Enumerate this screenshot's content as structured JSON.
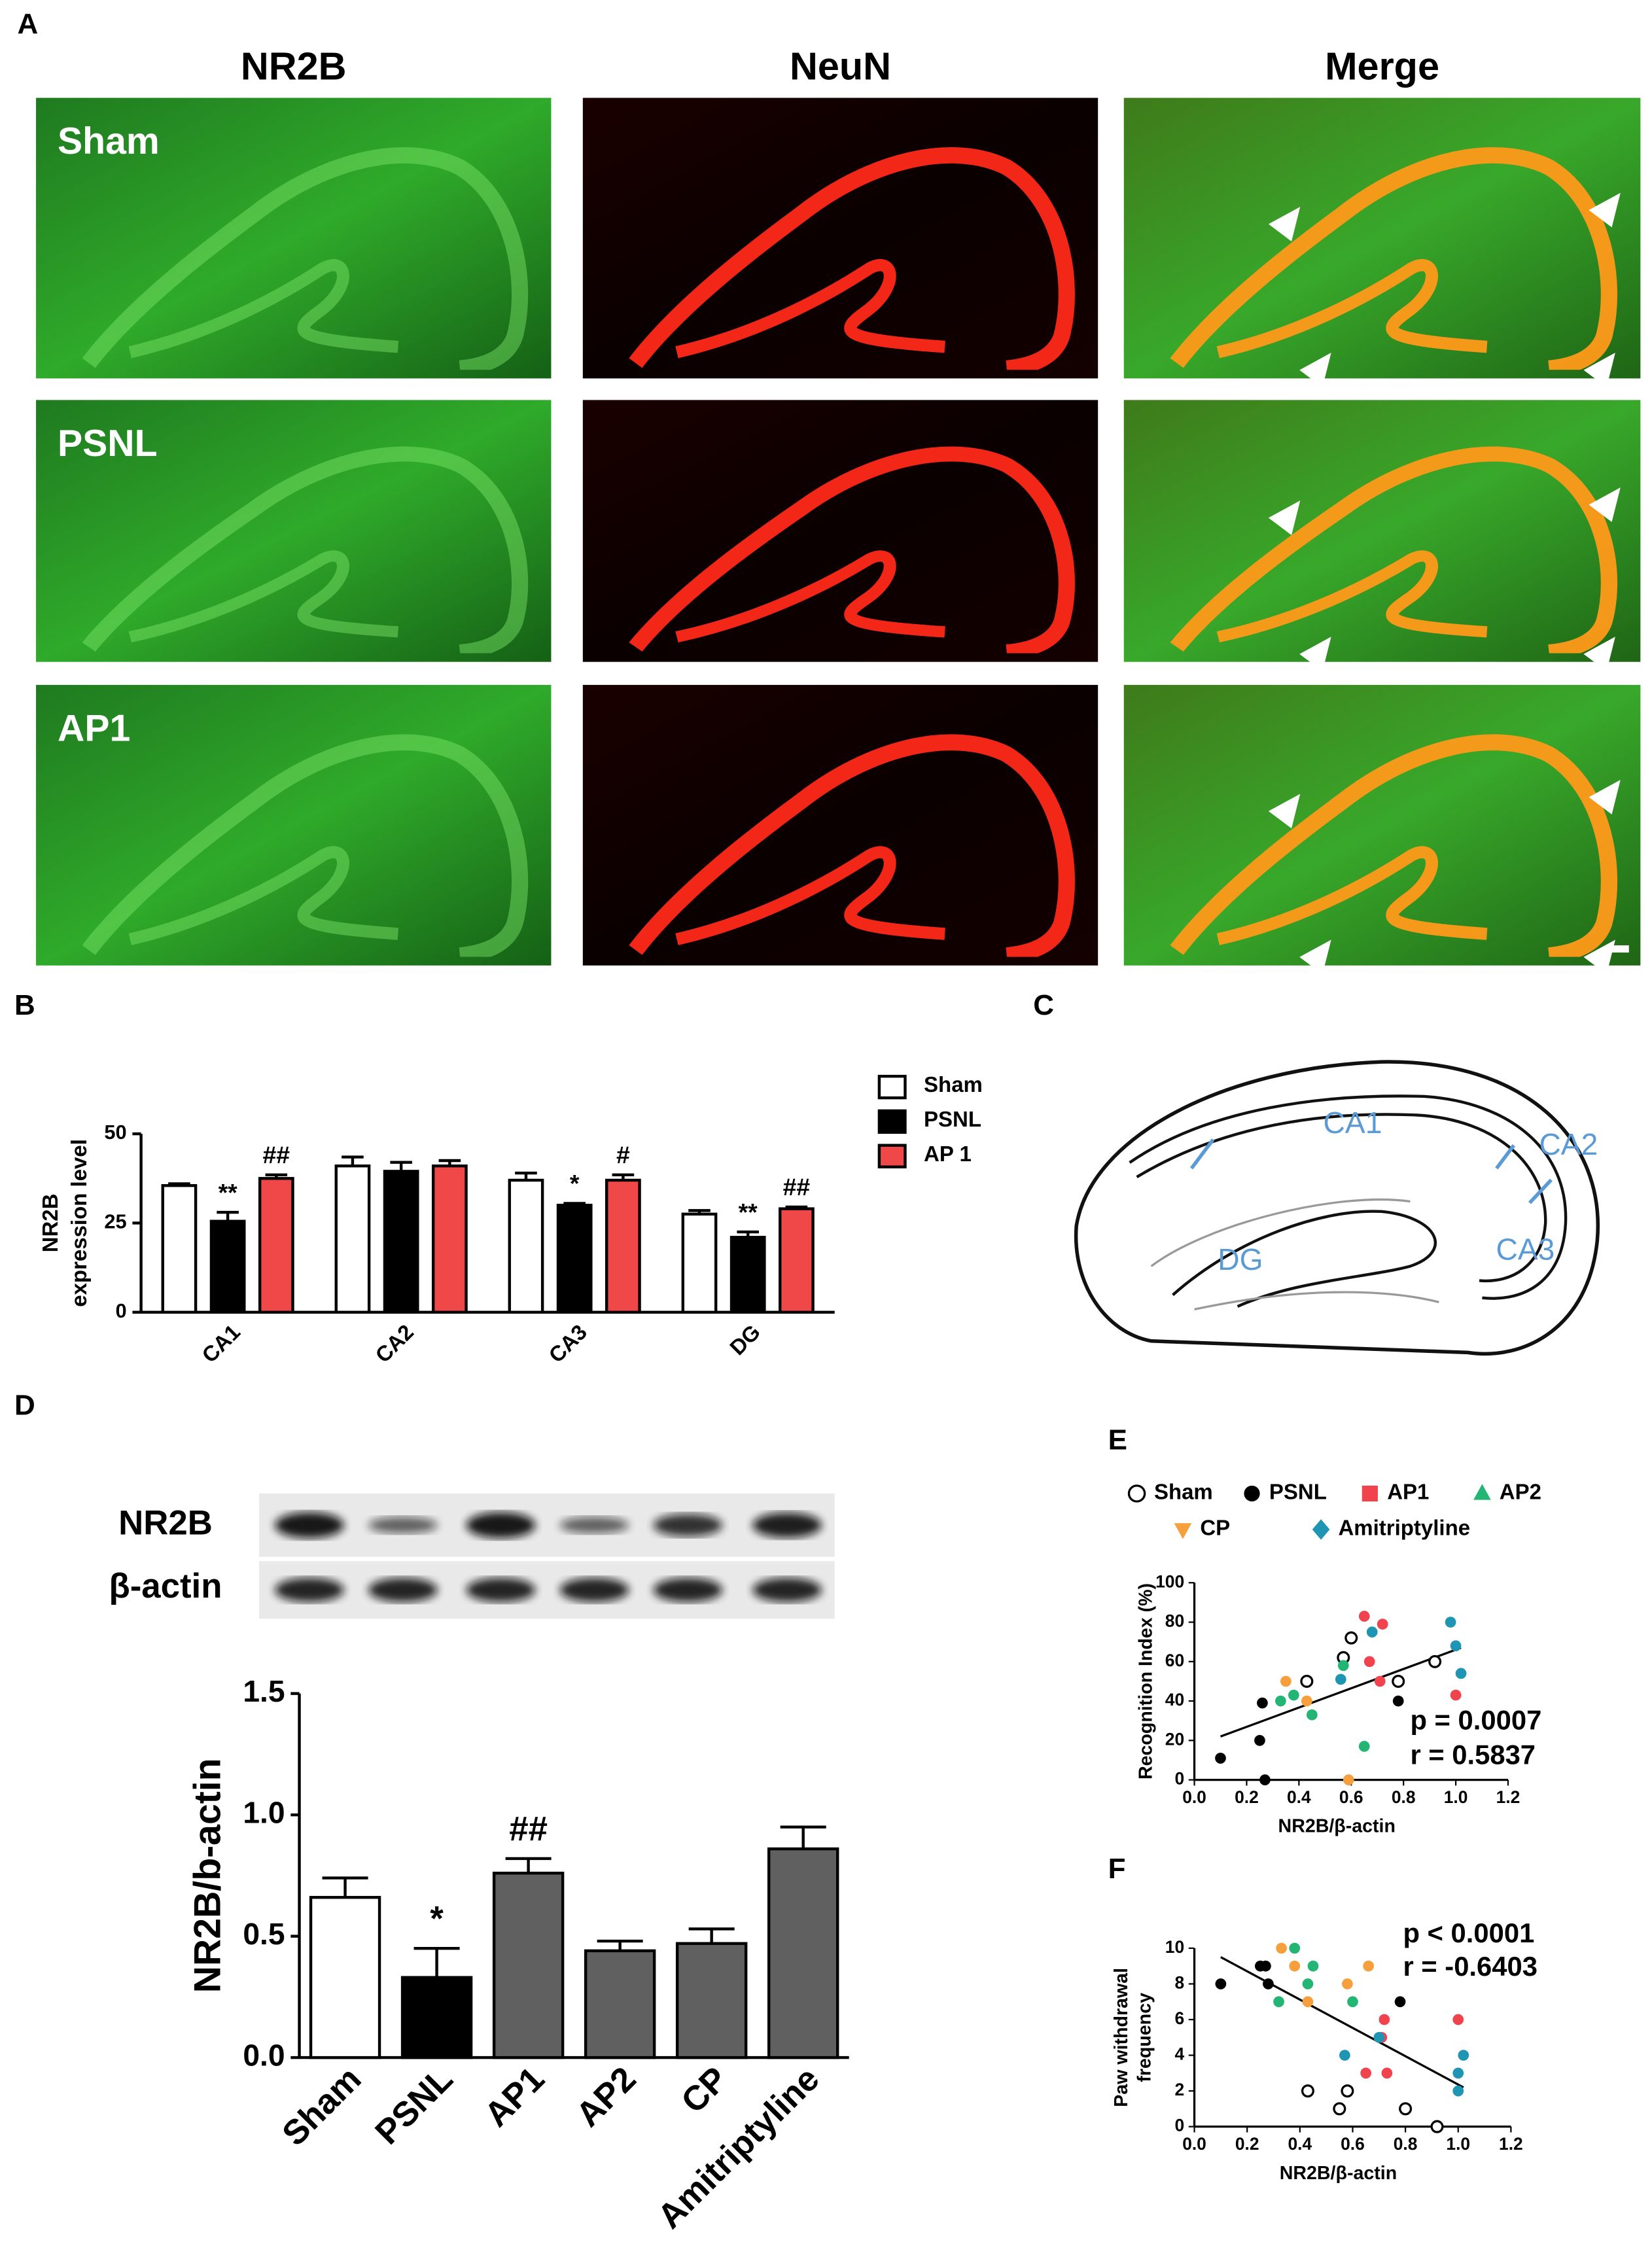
{
  "panel_labels": [
    "A",
    "B",
    "C",
    "D",
    "E",
    "F"
  ],
  "microscopy": {
    "columns": [
      "NR2B",
      "NeuN",
      "Merge"
    ],
    "rows": [
      "Sham",
      "PSNL",
      "AP1"
    ]
  },
  "diagram": {
    "regions": [
      "CA1",
      "CA2",
      "CA3",
      "DG"
    ]
  },
  "blot": {
    "rows": [
      "NR2B",
      "β-actin"
    ]
  },
  "chart_data": [
    {
      "type": "bar",
      "y_label_lines": [
        "NR2B",
        "expression level"
      ],
      "categories": [
        "CA1",
        "CA2",
        "CA3",
        "DG"
      ],
      "series": [
        {
          "name": "Sham",
          "color": "#ffffff",
          "values": [
            35.5,
            41,
            37,
            27.5
          ],
          "errors": [
            0.5,
            2.5,
            2,
            1
          ],
          "annotations": [
            null,
            null,
            null,
            null
          ]
        },
        {
          "name": "PSNL",
          "color": "#000000",
          "values": [
            25.5,
            39.5,
            30,
            21
          ],
          "errors": [
            2.5,
            2.5,
            0.5,
            1.5
          ],
          "annotations": [
            "**",
            null,
            "*",
            "**"
          ]
        },
        {
          "name": "AP 1",
          "color": "#f04848",
          "values": [
            37.5,
            41,
            37,
            29
          ],
          "errors": [
            1,
            1.5,
            1.5,
            0.5
          ],
          "annotations": [
            "##",
            null,
            "#",
            "##"
          ]
        }
      ],
      "ylim": [
        0,
        50
      ],
      "yticks": [
        0,
        25,
        50
      ],
      "legend": "right"
    },
    {
      "type": "bar",
      "y_label": "NR2B/b-actin",
      "categories": [
        "Sham",
        "PSNL",
        "AP1",
        "AP2",
        "CP",
        "Amitriptyline"
      ],
      "values": [
        0.66,
        0.33,
        0.76,
        0.44,
        0.47,
        0.86
      ],
      "errors": [
        0.08,
        0.12,
        0.06,
        0.04,
        0.06,
        0.09
      ],
      "colors": [
        "#ffffff",
        "#000000",
        "#606060",
        "#606060",
        "#606060",
        "#606060"
      ],
      "annotations": [
        null,
        "*",
        "##",
        null,
        null,
        null
      ],
      "ylim": [
        0,
        1.5
      ],
      "yticks": [
        {
          "value": 0,
          "label": "0.0"
        },
        0.5,
        {
          "value": 1,
          "label": "1.0"
        },
        1.5
      ]
    },
    {
      "type": "scatter",
      "x_label": "NR2B/β-actin",
      "y_label": "Recognition Index (%)",
      "series": [
        {
          "name": "Sham",
          "color": "#000000",
          "marker": "open-circle",
          "x": [
            0.43,
            0.57,
            0.6,
            0.78,
            0.92
          ],
          "y": [
            50,
            62,
            72,
            50,
            60
          ]
        },
        {
          "name": "PSNL",
          "color": "#000000",
          "marker": "circle",
          "x": [
            0.1,
            0.25,
            0.26,
            0.27,
            0.78
          ],
          "y": [
            11,
            20,
            39,
            0,
            40
          ]
        },
        {
          "name": "AP1",
          "color": "#f0434d",
          "marker": "square",
          "x": [
            0.65,
            0.72,
            0.67,
            0.71,
            1.0
          ],
          "y": [
            83,
            79,
            60,
            50,
            43
          ]
        },
        {
          "name": "AP2",
          "color": "#22b573",
          "marker": "triangle",
          "x": [
            0.33,
            0.38,
            0.45,
            0.57,
            0.65
          ],
          "y": [
            40,
            43,
            33,
            58,
            17
          ]
        },
        {
          "name": "CP",
          "color": "#f5a03c",
          "marker": "triangle-down",
          "x": [
            0.35,
            0.43,
            0.59
          ],
          "y": [
            50,
            40,
            0
          ]
        },
        {
          "name": "Amitriptyline",
          "color": "#1f95b4",
          "marker": "diamond",
          "x": [
            0.56,
            0.68,
            0.98,
            1.02,
            1.0
          ],
          "y": [
            51,
            75,
            80,
            54,
            68
          ]
        }
      ],
      "fit": {
        "x": [
          0.1,
          1.02
        ],
        "y": [
          22,
          67
        ]
      },
      "stats": [
        "p = 0.0007",
        "r = 0.5837"
      ],
      "xlim": [
        0,
        1.2
      ],
      "xticks": [
        {
          "value": 0,
          "label": "0.0"
        },
        0.2,
        0.4,
        0.6,
        0.8,
        {
          "value": 1,
          "label": "1.0"
        },
        1.2
      ],
      "ylim": [
        0,
        100
      ],
      "yticks": [
        0,
        20,
        40,
        60,
        80,
        100
      ]
    },
    {
      "type": "scatter",
      "x_label": "NR2B/β-actin",
      "y_label_lines": [
        "Paw withdrawal",
        "frequency"
      ],
      "series": [
        {
          "color": "#000000",
          "marker": "open-circle",
          "x": [
            0.43,
            0.55,
            0.58,
            0.8,
            0.92
          ],
          "y": [
            2,
            1,
            2,
            1,
            0
          ]
        },
        {
          "color": "#000000",
          "marker": "circle",
          "x": [
            0.1,
            0.25,
            0.27,
            0.28,
            0.78
          ],
          "y": [
            8,
            9,
            9,
            8,
            7
          ]
        },
        {
          "color": "#f0434d",
          "marker": "circle",
          "x": [
            0.65,
            0.71,
            0.73,
            0.72,
            1.0
          ],
          "y": [
            3,
            5,
            3,
            6,
            6
          ]
        },
        {
          "color": "#22b573",
          "marker": "circle",
          "x": [
            0.32,
            0.38,
            0.43,
            0.45,
            0.6
          ],
          "y": [
            7,
            10,
            8,
            9,
            7
          ]
        },
        {
          "color": "#f5a03c",
          "marker": "circle",
          "x": [
            0.33,
            0.38,
            0.43,
            0.58,
            0.66
          ],
          "y": [
            10,
            9,
            7,
            8,
            9
          ]
        },
        {
          "color": "#1f95b4",
          "marker": "circle",
          "x": [
            0.57,
            0.7,
            1.0,
            1.0,
            1.02
          ],
          "y": [
            4,
            5,
            3,
            2,
            4
          ]
        }
      ],
      "fit": {
        "x": [
          0.1,
          1.02
        ],
        "y": [
          9.5,
          2.2
        ]
      },
      "stats": [
        "p < 0.0001",
        "r = -0.6403"
      ],
      "xlim": [
        0,
        1.2
      ],
      "xticks": [
        {
          "value": 0,
          "label": "0.0"
        },
        0.2,
        0.4,
        0.6,
        0.8,
        {
          "value": 1,
          "label": "1.0"
        },
        1.2
      ],
      "ylim": [
        0,
        10
      ],
      "yticks": [
        0,
        2,
        4,
        6,
        8,
        10
      ]
    }
  ]
}
